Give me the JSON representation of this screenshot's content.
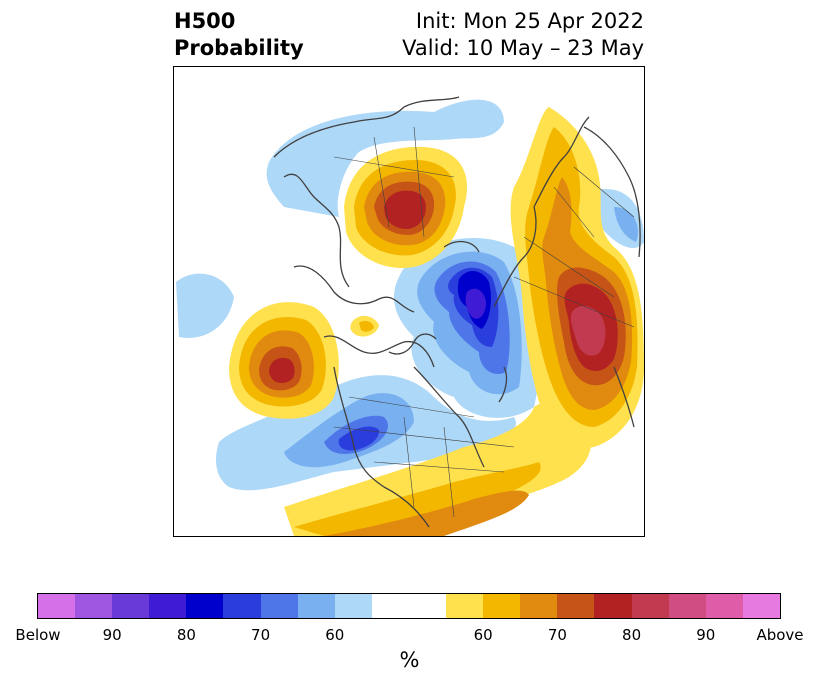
{
  "title": {
    "left_line1": "H500",
    "left_line2": "Probability",
    "right_line1": "Init: Mon 25 Apr 2022",
    "right_line2": "Valid: 10 May – 23 May"
  },
  "colorbar": {
    "colors": [
      "#d670e8",
      "#9e55e0",
      "#6a3ad8",
      "#3f1bd6",
      "#0000cc",
      "#2a3ede",
      "#4e76e8",
      "#78b0f0",
      "#aed8f8",
      "#ffffff",
      "#ffffff",
      "#ffe14d",
      "#f4b700",
      "#e08a10",
      "#c65416",
      "#b22222",
      "#c23a50",
      "#cf4d80",
      "#de5ca8",
      "#e67ae0"
    ],
    "tick_labels": [
      "Below",
      "90",
      "80",
      "70",
      "60",
      "60",
      "70",
      "80",
      "90",
      "Above"
    ],
    "label": "%"
  },
  "map_colors": {
    "below_60": "#aed8f8",
    "below_70": "#78b0f0",
    "below_80": "#4e76e8",
    "below_90": "#2a3ede",
    "below_95": "#0000cc",
    "below_max": "#3f1bd6",
    "above_60": "#ffe14d",
    "above_70": "#f4b700",
    "above_80": "#e08a10",
    "above_85": "#c65416",
    "above_90": "#b22222",
    "above_95": "#c23a50",
    "coastline": "#404040"
  }
}
